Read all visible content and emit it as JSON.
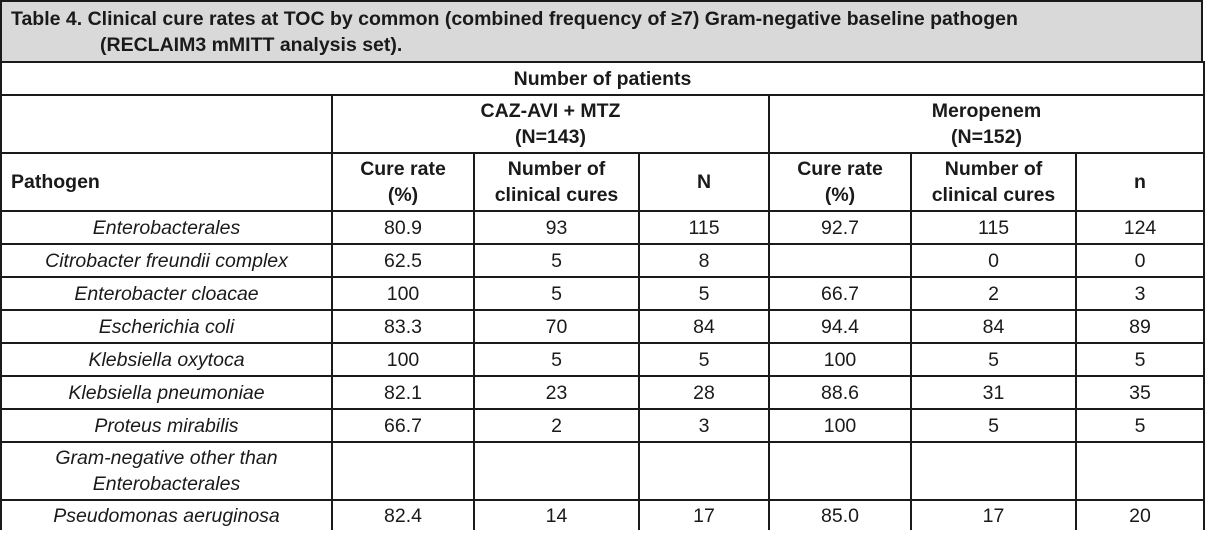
{
  "caption": {
    "line1": "Table 4. Clinical cure rates at TOC by common (combined frequency of ≥7) Gram-negative baseline pathogen",
    "line2": "(RECLAIM3 mMITT analysis set)."
  },
  "header": {
    "number_of_patients": "Number of patients",
    "arm1": {
      "name": "CAZ-AVI + MTZ",
      "n": "(N=143)"
    },
    "arm2": {
      "name": "Meropenem",
      "n": "(N=152)"
    },
    "pathogen": "Pathogen",
    "arm1_cols": [
      {
        "l1": "Cure rate",
        "l2": "(%)"
      },
      {
        "l1": "Number of",
        "l2": "clinical cures"
      },
      {
        "l1": "N",
        "l2": ""
      }
    ],
    "arm2_cols": [
      {
        "l1": "Cure rate",
        "l2": "(%)"
      },
      {
        "l1": "Number of",
        "l2": "clinical cures"
      },
      {
        "l1": "n",
        "l2": ""
      }
    ]
  },
  "rows": [
    {
      "pathogen": "Enterobacterales",
      "v": [
        "80.9",
        "93",
        "115",
        "92.7",
        "115",
        "124"
      ]
    },
    {
      "pathogen": "Citrobacter freundii complex",
      "v": [
        "62.5",
        "5",
        "8",
        "",
        "0",
        "0"
      ]
    },
    {
      "pathogen": "Enterobacter cloacae",
      "v": [
        "100",
        "5",
        "5",
        "66.7",
        "2",
        "3"
      ]
    },
    {
      "pathogen": "Escherichia coli",
      "v": [
        "83.3",
        "70",
        "84",
        "94.4",
        "84",
        "89"
      ]
    },
    {
      "pathogen": "Klebsiella oxytoca",
      "v": [
        "100",
        "5",
        "5",
        "100",
        "5",
        "5"
      ]
    },
    {
      "pathogen": "Klebsiella pneumoniae",
      "v": [
        "82.1",
        "23",
        "28",
        "88.6",
        "31",
        "35"
      ]
    },
    {
      "pathogen": "Proteus mirabilis",
      "v": [
        "66.7",
        "2",
        "3",
        "100",
        "5",
        "5"
      ]
    },
    {
      "pathogen": "Gram-negative other than",
      "pathogen2": "Enterobacterales",
      "v": [
        "",
        "",
        "",
        "",
        "",
        ""
      ]
    },
    {
      "pathogen": "Pseudomonas aeruginosa",
      "v": [
        "82.4",
        "14",
        "17",
        "85.0",
        "17",
        "20"
      ]
    }
  ]
}
